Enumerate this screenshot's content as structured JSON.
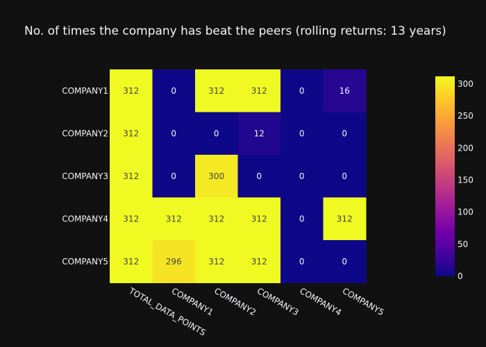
{
  "chart_data": {
    "type": "heatmap",
    "title": "No. of times the company has beat the peers (rolling returns: 13 years)",
    "x": [
      "TOTAL_DATA_POINTS",
      "COMPANY1",
      "COMPANY2",
      "COMPANY3",
      "COMPANY4",
      "COMPANY5"
    ],
    "y": [
      "COMPANY1",
      "COMPANY2",
      "COMPANY3",
      "COMPANY4",
      "COMPANY5"
    ],
    "z": [
      [
        312,
        0,
        312,
        312,
        0,
        16
      ],
      [
        312,
        0,
        0,
        12,
        0,
        0
      ],
      [
        312,
        0,
        300,
        0,
        0,
        0
      ],
      [
        312,
        312,
        312,
        312,
        0,
        312
      ],
      [
        312,
        296,
        312,
        312,
        0,
        0
      ]
    ],
    "zlim": [
      0,
      312
    ],
    "colorscale": "plasma",
    "colorbar_ticks": [
      0,
      50,
      100,
      150,
      200,
      250,
      300
    ],
    "colors": {
      "background": "#111111",
      "text": "#f2f5fa",
      "plasma": [
        "#0d0887",
        "#46039f",
        "#7201a8",
        "#9c179e",
        "#bd3786",
        "#d8576b",
        "#ed7953",
        "#fb9f3a",
        "#fdca26",
        "#f0f921"
      ]
    }
  }
}
